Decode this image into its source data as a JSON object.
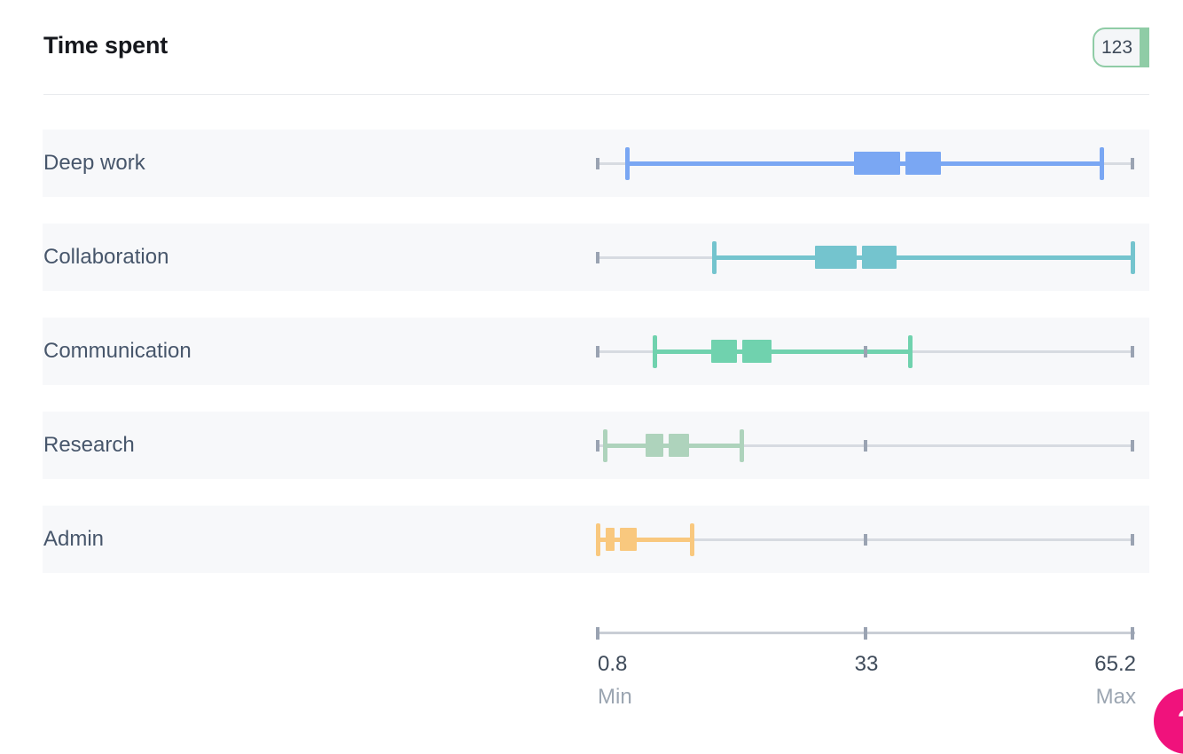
{
  "header": {
    "title": "Time spent",
    "badge_count": "123"
  },
  "chart_data": {
    "type": "boxplot",
    "orientation": "horizontal",
    "title": "Time spent",
    "categories": [
      "Deep work",
      "Collaboration",
      "Communication",
      "Research",
      "Admin"
    ],
    "series": [
      {
        "name": "Deep work",
        "whisker_low": 4.4,
        "q1": 31.7,
        "median": 37.5,
        "q3": 42.1,
        "whisker_high": 61.5,
        "color": "#7aa7f3"
      },
      {
        "name": "Collaboration",
        "whisker_low": 14.8,
        "q1": 27.0,
        "median": 32.3,
        "q3": 36.8,
        "whisker_high": 65.2,
        "color": "#74c4ce"
      },
      {
        "name": "Communication",
        "whisker_low": 7.7,
        "q1": 14.5,
        "median": 17.9,
        "q3": 21.7,
        "whisker_high": 38.4,
        "color": "#70d2ae"
      },
      {
        "name": "Research",
        "whisker_low": 1.7,
        "q1": 6.6,
        "median": 9.0,
        "q3": 11.8,
        "whisker_high": 18.2,
        "color": "#aed3bc"
      },
      {
        "name": "Admin",
        "whisker_low": 0.8,
        "q1": 1.8,
        "median": 3.1,
        "q3": 5.5,
        "whisker_high": 12.2,
        "color": "#f9c87e"
      }
    ],
    "axis": {
      "min": 0.8,
      "mid": 33,
      "max": 65.2,
      "min_label": "0.8",
      "mid_label": "33",
      "max_label": "65.2",
      "min_caption": "Min",
      "max_caption": "Max"
    },
    "grid": false,
    "legend": false,
    "colors": {
      "track": "#d7dbe1",
      "axis_tick": "#9aa3b2",
      "row_background": "#f7f8fa",
      "badge_green": "#8fcca6",
      "launcher_pink": "#f0127c"
    }
  },
  "launcher": {
    "help_label": "?"
  }
}
